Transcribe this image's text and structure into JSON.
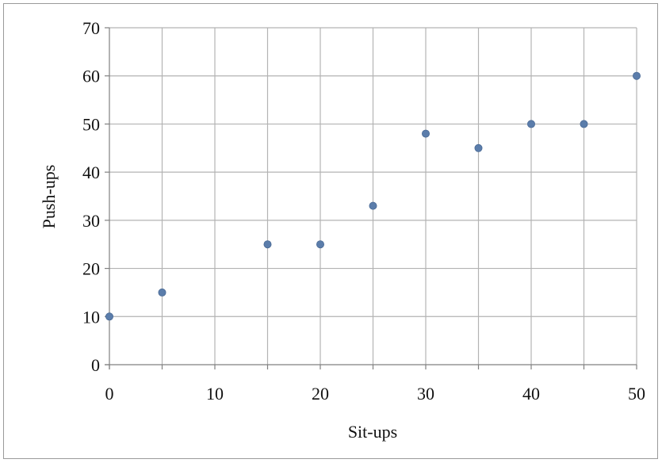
{
  "chart_data": {
    "type": "scatter",
    "title": "",
    "xlabel": "Sit-ups",
    "ylabel": "Push-ups",
    "xlim": [
      0,
      50
    ],
    "ylim": [
      0,
      70
    ],
    "x_ticks": [
      0,
      10,
      20,
      30,
      40,
      50
    ],
    "y_ticks": [
      0,
      10,
      20,
      30,
      40,
      50,
      60,
      70
    ],
    "x_tick_labels": [
      "0",
      "10",
      "20",
      "30",
      "40",
      "50"
    ],
    "y_tick_labels": [
      "0",
      "10",
      "20",
      "30",
      "40",
      "50",
      "60",
      "70"
    ],
    "x_grid_step": 5,
    "y_grid_step": 10,
    "grid": true,
    "legend": "none",
    "marker_color": "#5b7dab",
    "grid_color": "#b3b3b3",
    "points": [
      {
        "x": 0,
        "y": 10
      },
      {
        "x": 5,
        "y": 15
      },
      {
        "x": 15,
        "y": 25
      },
      {
        "x": 20,
        "y": 25
      },
      {
        "x": 25,
        "y": 33
      },
      {
        "x": 30,
        "y": 48
      },
      {
        "x": 35,
        "y": 45
      },
      {
        "x": 40,
        "y": 50
      },
      {
        "x": 45,
        "y": 50
      },
      {
        "x": 50,
        "y": 60
      }
    ]
  }
}
